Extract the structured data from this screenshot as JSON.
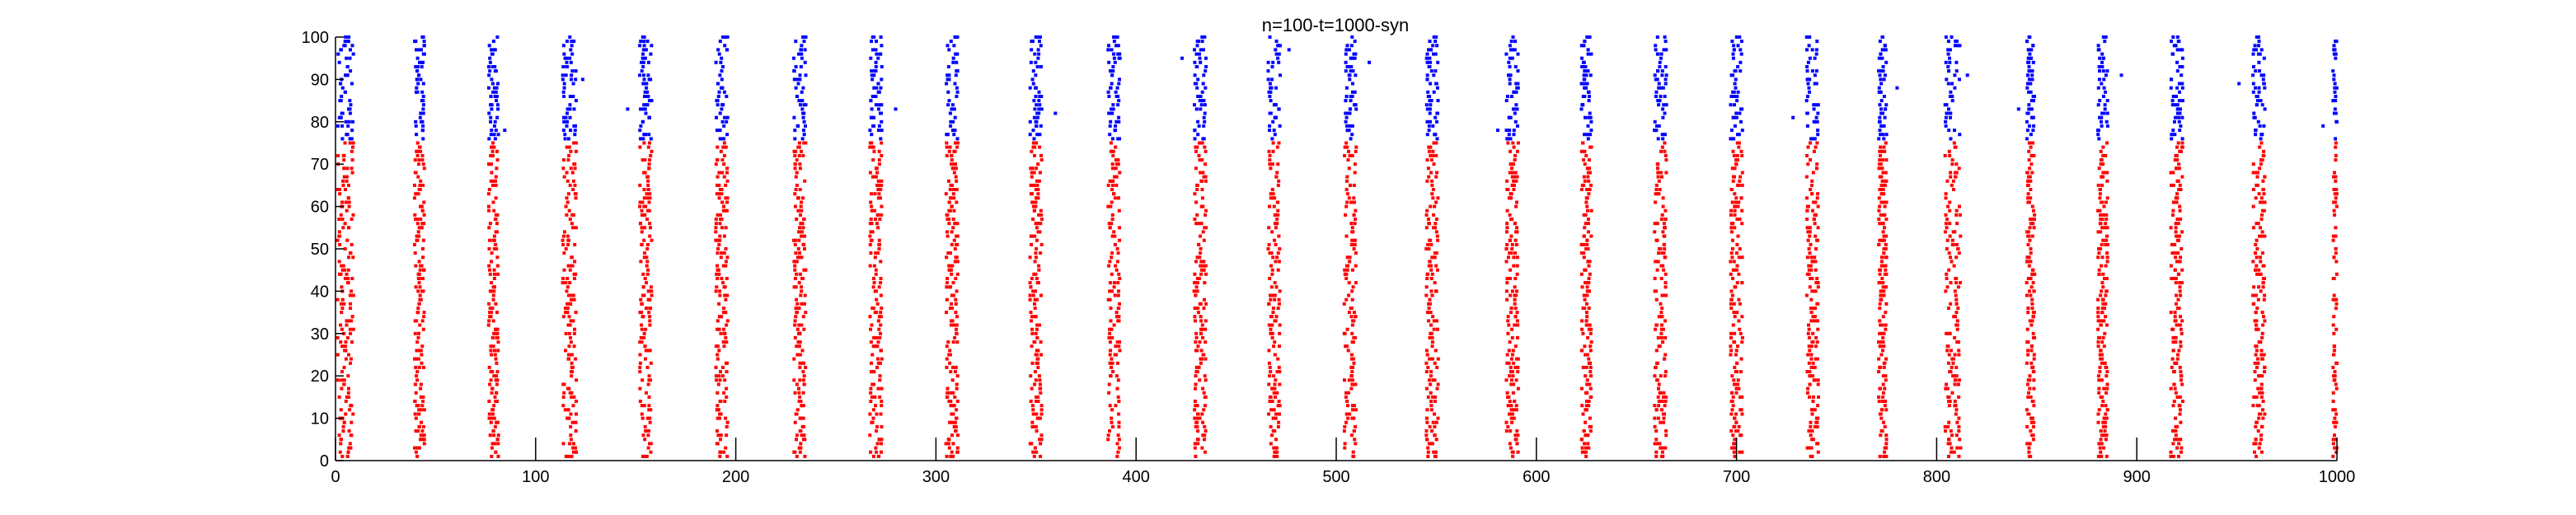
{
  "chart_data": {
    "type": "scatter",
    "title": "n=100-t=1000-syn",
    "xlabel": "",
    "ylabel": "",
    "xlim": [
      0,
      1000
    ],
    "ylim": [
      0,
      100
    ],
    "x_ticks": [
      0,
      100,
      200,
      300,
      400,
      500,
      600,
      700,
      800,
      900,
      1000
    ],
    "y_ticks": [
      0,
      10,
      20,
      30,
      40,
      50,
      60,
      70,
      80,
      90,
      100
    ],
    "grid": false,
    "legend": "none",
    "colors": {
      "excitatory": "#ff0000",
      "inhibitory": "#0000ff"
    },
    "neuron_groups": [
      {
        "color": "#ff0000",
        "neuron_range": [
          1,
          75
        ]
      },
      {
        "color": "#0000ff",
        "neuron_range": [
          76,
          100
        ]
      }
    ],
    "burst_times": [
      5,
      42,
      79,
      117,
      155,
      193,
      232,
      270,
      308,
      350,
      389,
      432,
      469,
      507,
      548,
      588,
      625,
      662,
      700,
      738,
      773,
      808,
      847,
      883,
      920,
      961,
      1000
    ],
    "burst_widths": [
      8,
      5,
      5,
      7,
      6,
      6,
      6,
      6,
      6,
      6,
      6,
      6,
      6,
      6,
      6,
      6,
      5,
      6,
      6,
      6,
      4,
      8,
      4,
      5,
      6,
      6,
      4
    ]
  }
}
